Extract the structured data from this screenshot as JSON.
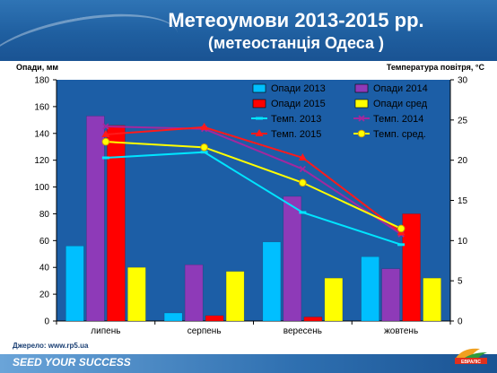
{
  "header": {
    "title_line1": "Метеоумови 2013-2015 рр.",
    "title_line2": "(метеостанція Одеса )"
  },
  "footer": {
    "source": "Джерело: www.rp5.ua",
    "slogan": "SEED YOUR SUCCESS",
    "logo_text": "ЕВРАЛІС"
  },
  "colors": {
    "opady_2013": "#00bfff",
    "opady_2014": "#8e3ab8",
    "opady_2015": "#ff0000",
    "opady_sred": "#ffff00",
    "temp_2013": "#00e5ff",
    "temp_2014": "#a3289e",
    "temp_2015": "#ff1a1a",
    "temp_sred": "#ffff00",
    "plot_bg": "#1c5ea6"
  },
  "chart_data": {
    "type": "bar",
    "categories": [
      "липень",
      "серпень",
      "вересень",
      "жовтень"
    ],
    "ylabel": "Опади, мм",
    "y2label": "Температура повітря, °С",
    "ylim": [
      0,
      180
    ],
    "y2lim": [
      0,
      30
    ],
    "yticks": [
      0,
      20,
      40,
      60,
      80,
      100,
      120,
      140,
      160,
      180
    ],
    "y2ticks": [
      0,
      5,
      10,
      15,
      20,
      25,
      30
    ],
    "grid": false,
    "legend_position": "top-right",
    "bar_series": [
      {
        "name": "Опади 2013",
        "values": [
          56,
          6,
          59,
          48
        ]
      },
      {
        "name": "Опади 2014",
        "values": [
          153,
          42,
          93,
          39
        ]
      },
      {
        "name": "Опади 2015",
        "values": [
          146,
          4,
          3,
          80
        ]
      },
      {
        "name": "Опади сред",
        "values": [
          40,
          37,
          32,
          32
        ]
      }
    ],
    "line_series": [
      {
        "name": "Темп. 2013",
        "values": [
          20.3,
          21.0,
          13.5,
          9.5
        ],
        "marker": "dash"
      },
      {
        "name": "Темп. 2014",
        "values": [
          24.2,
          23.9,
          18.9,
          10.8
        ],
        "marker": "x"
      },
      {
        "name": "Темп. 2015",
        "values": [
          23.2,
          24.1,
          20.3,
          11.0
        ],
        "marker": "triangle"
      },
      {
        "name": "Темп. сред.",
        "values": [
          22.3,
          21.6,
          17.2,
          11.5
        ],
        "marker": "circle"
      }
    ]
  }
}
